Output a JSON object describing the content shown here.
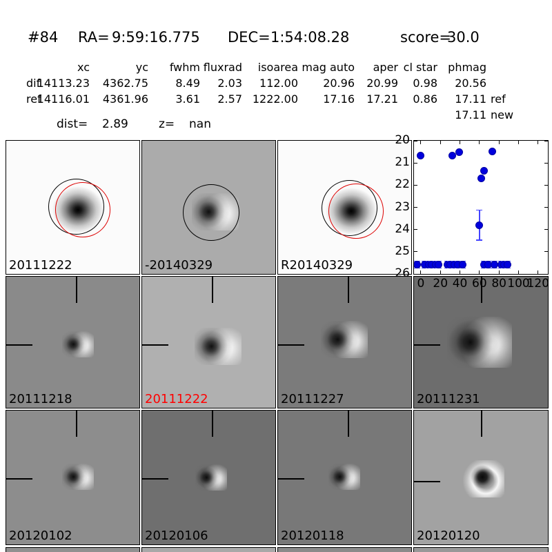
{
  "header": {
    "id": "#84",
    "ra_label": "RA=",
    "ra_value": "9:59:16.775",
    "dec_label": "DEC=",
    "dec_value": "1:54:08.28",
    "score_label": "score=",
    "score_value": "30.0"
  },
  "table": {
    "columns": [
      "xc",
      "yc",
      "fwhm",
      "fluxrad",
      "isoarea",
      "mag auto",
      "aper",
      "cl star",
      "phmag"
    ],
    "rows": [
      {
        "label": "dif",
        "values": [
          "14113.23",
          "4362.75",
          "8.49",
          "2.03",
          "112.00",
          "20.96",
          "20.99",
          "0.98",
          "20.56"
        ],
        "suffix": ""
      },
      {
        "label": "ref",
        "values": [
          "14116.01",
          "4361.96",
          "3.61",
          "2.57",
          "1222.00",
          "17.16",
          "17.21",
          "0.86",
          "17.11"
        ],
        "suffix": "ref"
      }
    ],
    "phmag_extra": {
      "value": "17.11",
      "suffix": "new"
    },
    "dist_label": "dist=",
    "dist_value": "2.89",
    "z_label": "z=",
    "z_value": "nan"
  },
  "colors": {
    "aperture_circle_black": "#000000",
    "aperture_circle_red": "#dd0000",
    "selected_label": "#ff0000",
    "marker_blue": "#0000dd",
    "errorbar_blue": "#4444ff"
  },
  "panels": [
    {
      "label": "20111222",
      "label_color": "#000000",
      "bg": "#fbfbfb"
    },
    {
      "label": "-20140329",
      "label_color": "#000000",
      "bg": "#ababab"
    },
    {
      "label": "R20140329",
      "label_color": "#000000",
      "bg": "#fbfbfb"
    },
    {
      "label": "20111218",
      "label_color": "#000000",
      "bg": "#8a8a8a"
    },
    {
      "label": "20111222",
      "label_color": "#ff0000",
      "bg": "#b0b0b0"
    },
    {
      "label": "20111227",
      "label_color": "#000000",
      "bg": "#7b7b7b"
    },
    {
      "label": "20111231",
      "label_color": "#000000",
      "bg": "#6d6d6d"
    },
    {
      "label": "20120102",
      "label_color": "#000000",
      "bg": "#8d8d8d"
    },
    {
      "label": "20120106",
      "label_color": "#000000",
      "bg": "#6f6f6f"
    },
    {
      "label": "20120118",
      "label_color": "#000000",
      "bg": "#787878"
    },
    {
      "label": "20120120",
      "label_color": "#000000",
      "bg": "#a2a2a2"
    }
  ],
  "chart_data": {
    "type": "scatter",
    "title": "",
    "xlabel": "",
    "ylabel": "",
    "xlim": [
      -7,
      130
    ],
    "ylim": [
      20,
      26
    ],
    "y_axis_inverted_magnitude": true,
    "grid": false,
    "legend": null,
    "xticks": [
      0,
      20,
      40,
      60,
      80,
      100,
      120
    ],
    "yticks": [
      20,
      21,
      22,
      23,
      24,
      25,
      26
    ],
    "marker_color": "#0000dd",
    "errorbar_color": "#4444ff",
    "points": [
      {
        "x": 0,
        "y": 20.68,
        "err": 0.05
      },
      {
        "x": 32,
        "y": 20.67,
        "err": 0.05
      },
      {
        "x": 39,
        "y": 20.52,
        "err": 0.05
      },
      {
        "x": 73,
        "y": 20.47,
        "err": 0.05
      },
      {
        "x": 65,
        "y": 21.35,
        "err": 0.07
      },
      {
        "x": 62,
        "y": 21.7,
        "err": 0.07
      },
      {
        "x": 60,
        "y": 23.8,
        "err": 0.68
      },
      {
        "x": -4,
        "y": 25.58,
        "err": 0.15
      },
      {
        "x": 4,
        "y": 25.58,
        "err": 0.15
      },
      {
        "x": 8,
        "y": 25.58,
        "err": 0.15
      },
      {
        "x": 11,
        "y": 25.58,
        "err": 0.15
      },
      {
        "x": 15,
        "y": 25.58,
        "err": 0.15
      },
      {
        "x": 18,
        "y": 25.58,
        "err": 0.15
      },
      {
        "x": 27,
        "y": 25.58,
        "err": 0.15
      },
      {
        "x": 30,
        "y": 25.58,
        "err": 0.15
      },
      {
        "x": 34,
        "y": 25.58,
        "err": 0.15
      },
      {
        "x": 38,
        "y": 25.58,
        "err": 0.15
      },
      {
        "x": 43,
        "y": 25.58,
        "err": 0.15
      },
      {
        "x": 65,
        "y": 25.58,
        "err": 0.15
      },
      {
        "x": 69,
        "y": 25.58,
        "err": 0.15
      },
      {
        "x": 75,
        "y": 25.58,
        "err": 0.15
      },
      {
        "x": 82,
        "y": 25.58,
        "err": 0.15
      },
      {
        "x": 85,
        "y": 25.58,
        "err": 0.15
      },
      {
        "x": 89,
        "y": 25.58,
        "err": 0.15
      }
    ]
  }
}
